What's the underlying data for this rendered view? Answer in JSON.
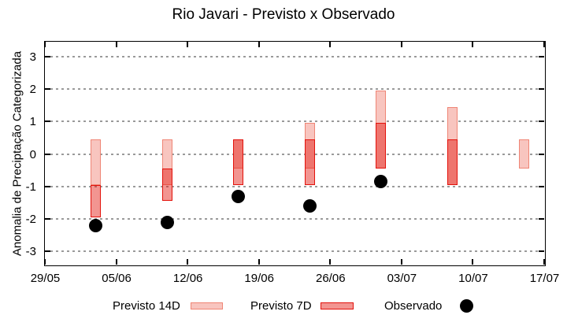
{
  "page_title": "Rio Javari - Previsto x Observado",
  "colors": {
    "previsto_14d_fill": "#f8c5bf",
    "previsto_14d_border": "#ef8575",
    "previsto_7d_fill": "rgba(227,20,12,0.45)",
    "previsto_7d_border": "#e3120b",
    "observado_dot": "#000000",
    "grid": "#9a9a9a",
    "axis": "#000000"
  },
  "chart_data": {
    "type": "bar",
    "subtype": "floating-range-bars-with-scatter-overlay",
    "title": "Rio Javari - Previsto x Observado",
    "xlabel": "",
    "ylabel": "Anomalia de Preciptação Categorizada",
    "ylim": [
      -3.45,
      3.5
    ],
    "grid": "dotted horizontal lines at integer y values",
    "legend_position": "bottom",
    "x_axis": {
      "start_label": "29/05",
      "end_label": "17/07",
      "tick_labels": [
        "29/05",
        "05/06",
        "12/06",
        "19/06",
        "26/06",
        "03/07",
        "10/07",
        "17/07"
      ],
      "tick_days": [
        0,
        7,
        14,
        21,
        28,
        35,
        42,
        49
      ]
    },
    "y_axis": {
      "ticks": [
        3,
        2,
        1,
        0,
        -1,
        -2,
        -3
      ]
    },
    "series": [
      {
        "name": "Previsto 14D",
        "style": "range-bar",
        "fill": "#f8c5bf",
        "border": "#ef8575",
        "points": [
          {
            "date": "03/06",
            "day": 5,
            "low": -0.95,
            "high": 0.45
          },
          {
            "date": "10/06",
            "day": 12,
            "low": -0.95,
            "high": 0.45
          },
          {
            "date": "17/06",
            "day": 19,
            "low": -0.45,
            "high": 0.45
          },
          {
            "date": "24/06",
            "day": 26,
            "low": -0.45,
            "high": 0.95
          },
          {
            "date": "01/07",
            "day": 33,
            "low": -0.45,
            "high": 1.95
          },
          {
            "date": "08/07",
            "day": 40,
            "low": -0.95,
            "high": 1.45
          },
          {
            "date": "15/07",
            "day": 47,
            "low": -0.45,
            "high": 0.45
          }
        ]
      },
      {
        "name": "Previsto 7D",
        "style": "range-bar",
        "fill": "rgba(227,20,12,0.45)",
        "border": "#e3120b",
        "points": [
          {
            "date": "03/06",
            "day": 5,
            "low": -1.95,
            "high": -0.95
          },
          {
            "date": "10/06",
            "day": 12,
            "low": -1.45,
            "high": -0.45
          },
          {
            "date": "17/06",
            "day": 19,
            "low": -0.95,
            "high": 0.45
          },
          {
            "date": "24/06",
            "day": 26,
            "low": -0.95,
            "high": 0.45
          },
          {
            "date": "01/07",
            "day": 33,
            "low": -0.45,
            "high": 0.95
          },
          {
            "date": "08/07",
            "day": 40,
            "low": -0.95,
            "high": 0.45
          }
        ]
      },
      {
        "name": "Observado",
        "style": "scatter",
        "color": "#000000",
        "points": [
          {
            "date": "03/06",
            "day": 5,
            "value": -2.2
          },
          {
            "date": "10/06",
            "day": 12,
            "value": -2.1
          },
          {
            "date": "17/06",
            "day": 19,
            "value": -1.3
          },
          {
            "date": "24/06",
            "day": 26,
            "value": -1.6
          },
          {
            "date": "01/07",
            "day": 33,
            "value": -0.85
          }
        ]
      }
    ]
  },
  "legend": {
    "previsto_14d_label": "Previsto 14D",
    "previsto_7d_label": "Previsto 7D",
    "observado_label": "Observado"
  }
}
